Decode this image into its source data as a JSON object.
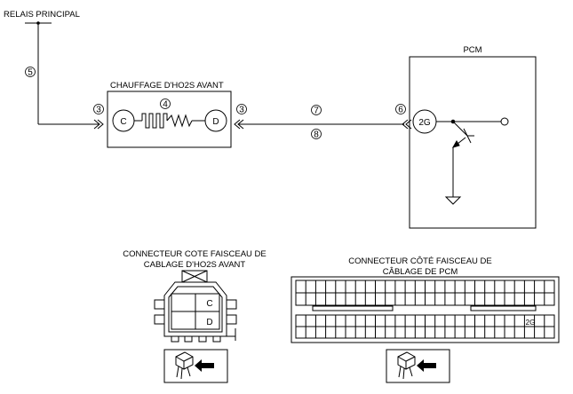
{
  "diagram": {
    "relay_label": "RELAIS PRINCIPAL",
    "heater_label": "CHAUFFAGE D'HO2S AVANT",
    "pcm_label": "PCM",
    "callouts": [
      "5",
      "3",
      "4",
      "3",
      "7",
      "8",
      "6"
    ],
    "heater_pins": [
      "C",
      "D"
    ],
    "pcm_pin": "2G",
    "connector_left": {
      "title_line1": "CONNECTEUR COTE FAISCEAU DE",
      "title_line2": "CABLAGE D'HO2S AVANT",
      "pins": [
        "C",
        "D"
      ]
    },
    "connector_right": {
      "title_line1": "CONNECTEUR CÔTÉ FAISCEAU DE",
      "title_line2": "CÂBLAGE DE PCM",
      "pin": "2G"
    }
  }
}
